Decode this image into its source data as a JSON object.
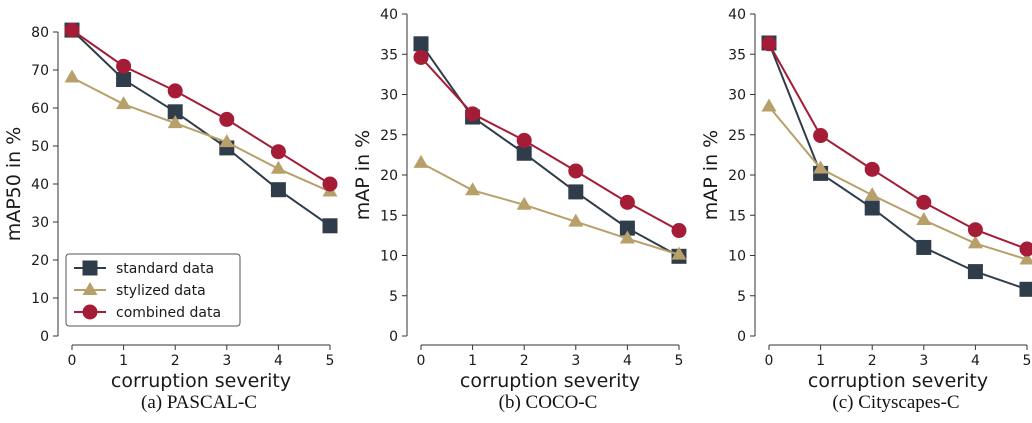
{
  "colors": {
    "standard": "#2f3d4a",
    "stylized": "#b8a06a",
    "combined": "#a51c36",
    "axis": "#333333"
  },
  "legend": {
    "entries": [
      "standard data",
      "stylized data",
      "combined data"
    ],
    "placement": "lower-left of first panel"
  },
  "chart_data": [
    {
      "type": "line",
      "caption": "(a) PASCAL-C",
      "xlabel": "corruption severity",
      "ylabel": "mAP50 in %",
      "x": [
        0,
        1,
        2,
        3,
        4,
        5
      ],
      "xticks": [
        "0",
        "1",
        "2",
        "3",
        "4",
        "5"
      ],
      "yticks": [
        "0",
        "10",
        "20",
        "30",
        "40",
        "50",
        "60",
        "70",
        "80"
      ],
      "ylim": [
        0,
        80
      ],
      "grid": false,
      "series": [
        {
          "name": "standard data",
          "marker": "square",
          "values": [
            80.5,
            67.5,
            59,
            49.5,
            38.5,
            29
          ]
        },
        {
          "name": "stylized data",
          "marker": "triangle",
          "values": [
            68,
            61,
            56,
            51,
            44,
            38
          ]
        },
        {
          "name": "combined data",
          "marker": "circle",
          "values": [
            80.5,
            71,
            64.5,
            57,
            48.5,
            40
          ]
        }
      ]
    },
    {
      "type": "line",
      "caption": "(b) COCO-C",
      "xlabel": "corruption severity",
      "ylabel": "mAP in %",
      "x": [
        0,
        1,
        2,
        3,
        4,
        5
      ],
      "xticks": [
        "0",
        "1",
        "2",
        "3",
        "4",
        "5"
      ],
      "yticks": [
        "0",
        "5",
        "10",
        "15",
        "20",
        "25",
        "30",
        "35",
        "40"
      ],
      "ylim": [
        0,
        40
      ],
      "grid": false,
      "series": [
        {
          "name": "standard data",
          "marker": "square",
          "values": [
            36.3,
            27.2,
            22.7,
            17.9,
            13.4,
            9.9
          ]
        },
        {
          "name": "stylized data",
          "marker": "triangle",
          "values": [
            21.5,
            18.1,
            16.3,
            14.2,
            12.1,
            10.1
          ]
        },
        {
          "name": "combined data",
          "marker": "circle",
          "values": [
            34.6,
            27.6,
            24.3,
            20.5,
            16.6,
            13.1
          ]
        }
      ]
    },
    {
      "type": "line",
      "caption": "(c) Cityscapes-C",
      "xlabel": "corruption severity",
      "ylabel": "mAP in %",
      "x": [
        0,
        1,
        2,
        3,
        4,
        5
      ],
      "xticks": [
        "0",
        "1",
        "2",
        "3",
        "4",
        "5"
      ],
      "yticks": [
        "0",
        "5",
        "10",
        "15",
        "20",
        "25",
        "30",
        "35",
        "40"
      ],
      "ylim": [
        0,
        40
      ],
      "grid": false,
      "series": [
        {
          "name": "standard data",
          "marker": "square",
          "values": [
            36.4,
            20.2,
            15.9,
            11.0,
            8.0,
            5.8
          ]
        },
        {
          "name": "stylized data",
          "marker": "triangle",
          "values": [
            28.5,
            20.8,
            17.5,
            14.4,
            11.5,
            9.5
          ]
        },
        {
          "name": "combined data",
          "marker": "circle",
          "values": [
            36.3,
            24.9,
            20.7,
            16.6,
            13.2,
            10.8
          ]
        }
      ]
    }
  ]
}
